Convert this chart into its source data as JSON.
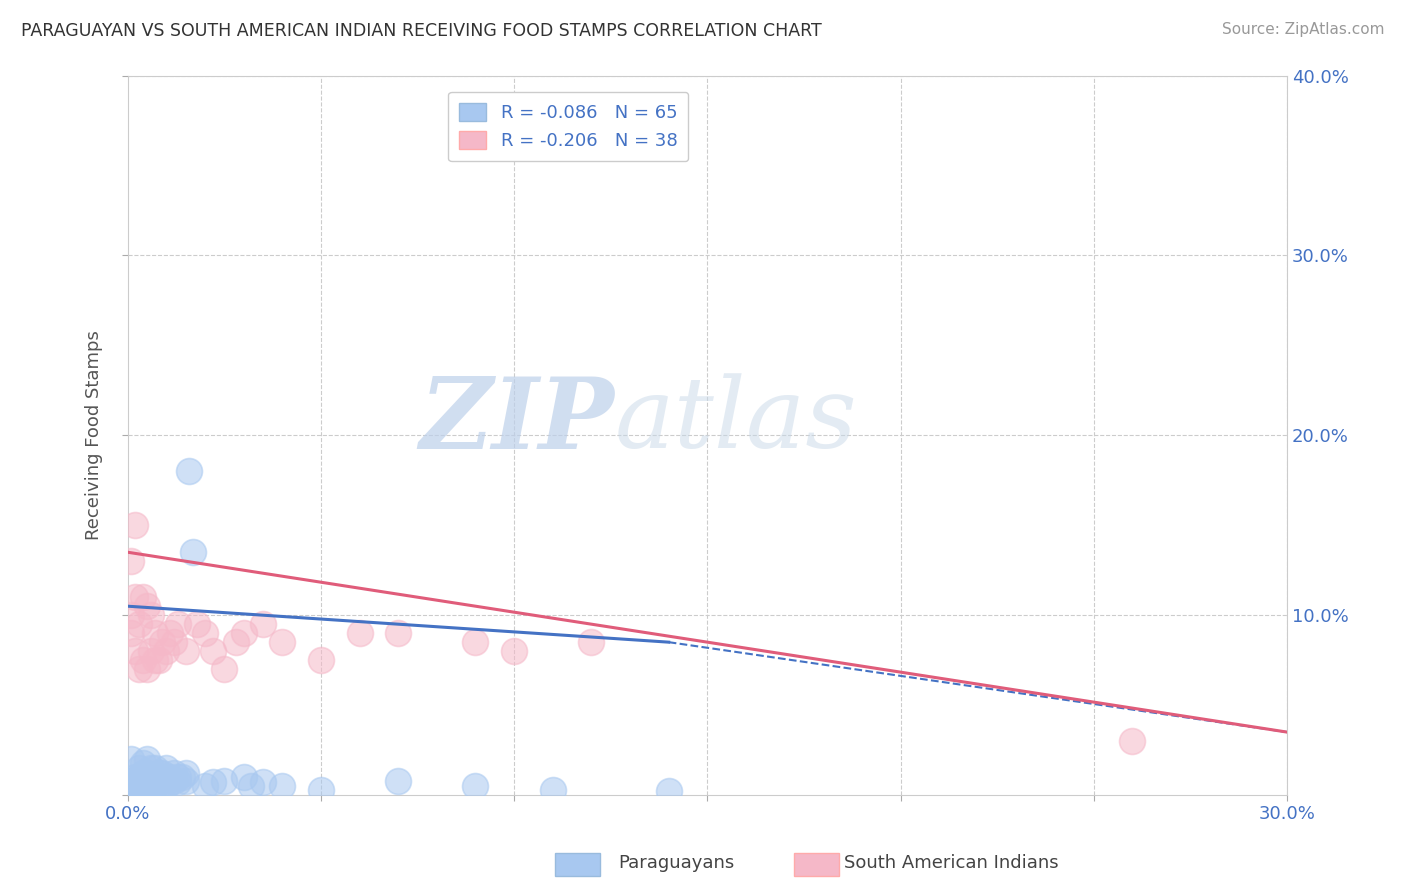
{
  "title": "PARAGUAYAN VS SOUTH AMERICAN INDIAN RECEIVING FOOD STAMPS CORRELATION CHART",
  "source": "Source: ZipAtlas.com",
  "ylabel": "Receiving Food Stamps",
  "xlim": [
    0.0,
    0.3
  ],
  "ylim": [
    0.0,
    0.4
  ],
  "legend_r_blue": "R = -0.086",
  "legend_n_blue": "N = 65",
  "legend_r_pink": "R = -0.206",
  "legend_n_pink": "N = 38",
  "blue_color": "#A8C8F0",
  "pink_color": "#F5B8C8",
  "blue_line_color": "#4472C4",
  "pink_line_color": "#E05C7A",
  "blue_R": -0.086,
  "pink_R": -0.206,
  "watermark_zip": "ZIP",
  "watermark_atlas": "atlas",
  "background_color": "#FFFFFF",
  "grid_color": "#CCCCCC",
  "paraguayans_x": [
    0.001,
    0.001,
    0.001,
    0.002,
    0.002,
    0.002,
    0.002,
    0.003,
    0.003,
    0.003,
    0.003,
    0.003,
    0.004,
    0.004,
    0.004,
    0.004,
    0.004,
    0.004,
    0.005,
    0.005,
    0.005,
    0.005,
    0.005,
    0.005,
    0.005,
    0.006,
    0.006,
    0.006,
    0.006,
    0.007,
    0.007,
    0.007,
    0.007,
    0.008,
    0.008,
    0.008,
    0.009,
    0.009,
    0.01,
    0.01,
    0.01,
    0.01,
    0.011,
    0.011,
    0.012,
    0.012,
    0.013,
    0.013,
    0.014,
    0.015,
    0.015,
    0.016,
    0.017,
    0.02,
    0.022,
    0.025,
    0.03,
    0.032,
    0.035,
    0.04,
    0.05,
    0.07,
    0.09,
    0.11,
    0.14
  ],
  "paraguayans_y": [
    0.005,
    0.008,
    0.02,
    0.003,
    0.005,
    0.007,
    0.01,
    0.003,
    0.005,
    0.008,
    0.01,
    0.015,
    0.003,
    0.005,
    0.007,
    0.009,
    0.012,
    0.018,
    0.003,
    0.005,
    0.007,
    0.008,
    0.01,
    0.012,
    0.02,
    0.005,
    0.007,
    0.01,
    0.015,
    0.005,
    0.008,
    0.01,
    0.015,
    0.007,
    0.01,
    0.012,
    0.008,
    0.012,
    0.005,
    0.007,
    0.01,
    0.015,
    0.007,
    0.01,
    0.008,
    0.012,
    0.007,
    0.01,
    0.01,
    0.008,
    0.012,
    0.18,
    0.135,
    0.005,
    0.007,
    0.008,
    0.01,
    0.005,
    0.007,
    0.005,
    0.003,
    0.008,
    0.005,
    0.003,
    0.002
  ],
  "south_american_x": [
    0.001,
    0.001,
    0.001,
    0.002,
    0.002,
    0.002,
    0.003,
    0.003,
    0.004,
    0.004,
    0.005,
    0.005,
    0.006,
    0.006,
    0.007,
    0.007,
    0.008,
    0.009,
    0.01,
    0.011,
    0.012,
    0.013,
    0.015,
    0.018,
    0.02,
    0.022,
    0.025,
    0.028,
    0.03,
    0.035,
    0.04,
    0.05,
    0.06,
    0.07,
    0.09,
    0.1,
    0.12,
    0.26
  ],
  "south_american_y": [
    0.09,
    0.1,
    0.13,
    0.08,
    0.11,
    0.15,
    0.07,
    0.095,
    0.075,
    0.11,
    0.07,
    0.105,
    0.08,
    0.1,
    0.075,
    0.09,
    0.075,
    0.085,
    0.08,
    0.09,
    0.085,
    0.095,
    0.08,
    0.095,
    0.09,
    0.08,
    0.07,
    0.085,
    0.09,
    0.095,
    0.085,
    0.075,
    0.09,
    0.09,
    0.085,
    0.08,
    0.085,
    0.03
  ],
  "blue_trend_x_start": 0.0,
  "blue_trend_x_solid_end": 0.14,
  "blue_trend_x_dash_end": 0.3,
  "blue_trend_y_start": 0.105,
  "blue_trend_y_solid_end": 0.085,
  "blue_trend_y_dash_end": 0.035,
  "pink_trend_x_start": 0.0,
  "pink_trend_x_end": 0.3,
  "pink_trend_y_start": 0.135,
  "pink_trend_y_end": 0.035
}
